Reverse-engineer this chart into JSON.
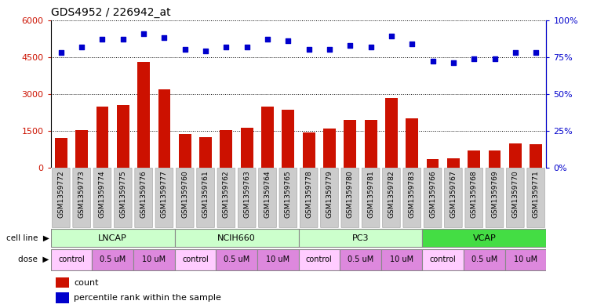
{
  "title": "GDS4952 / 226942_at",
  "samples": [
    "GSM1359772",
    "GSM1359773",
    "GSM1359774",
    "GSM1359775",
    "GSM1359776",
    "GSM1359777",
    "GSM1359760",
    "GSM1359761",
    "GSM1359762",
    "GSM1359763",
    "GSM1359764",
    "GSM1359765",
    "GSM1359778",
    "GSM1359779",
    "GSM1359780",
    "GSM1359781",
    "GSM1359782",
    "GSM1359783",
    "GSM1359766",
    "GSM1359767",
    "GSM1359768",
    "GSM1359769",
    "GSM1359770",
    "GSM1359771"
  ],
  "counts": [
    1200,
    1520,
    2500,
    2550,
    4300,
    3200,
    1380,
    1250,
    1540,
    1620,
    2500,
    2350,
    1450,
    1600,
    1950,
    1950,
    2850,
    2000,
    350,
    380,
    700,
    700,
    1000,
    950
  ],
  "percentiles": [
    78,
    82,
    87,
    87,
    91,
    88,
    80,
    79,
    82,
    82,
    87,
    86,
    80,
    80,
    83,
    82,
    89,
    84,
    72,
    71,
    74,
    74,
    78,
    78
  ],
  "cell_lines": [
    {
      "name": "LNCAP",
      "start": 0,
      "end": 6,
      "color": "#ccffcc"
    },
    {
      "name": "NCIH660",
      "start": 6,
      "end": 12,
      "color": "#ccffcc"
    },
    {
      "name": "PC3",
      "start": 12,
      "end": 18,
      "color": "#ccffcc"
    },
    {
      "name": "VCAP",
      "start": 18,
      "end": 24,
      "color": "#44dd44"
    }
  ],
  "doses": [
    {
      "label": "control",
      "start": 0,
      "end": 2,
      "color": "#ffccff"
    },
    {
      "label": "0.5 uM",
      "start": 2,
      "end": 4,
      "color": "#dd88dd"
    },
    {
      "label": "10 uM",
      "start": 4,
      "end": 6,
      "color": "#dd88dd"
    },
    {
      "label": "control",
      "start": 6,
      "end": 8,
      "color": "#ffccff"
    },
    {
      "label": "0.5 uM",
      "start": 8,
      "end": 10,
      "color": "#dd88dd"
    },
    {
      "label": "10 uM",
      "start": 10,
      "end": 12,
      "color": "#dd88dd"
    },
    {
      "label": "control",
      "start": 12,
      "end": 14,
      "color": "#ffccff"
    },
    {
      "label": "0.5 uM",
      "start": 14,
      "end": 16,
      "color": "#dd88dd"
    },
    {
      "label": "10 uM",
      "start": 16,
      "end": 18,
      "color": "#dd88dd"
    },
    {
      "label": "control",
      "start": 18,
      "end": 20,
      "color": "#ffccff"
    },
    {
      "label": "0.5 uM",
      "start": 20,
      "end": 22,
      "color": "#dd88dd"
    },
    {
      "label": "10 uM",
      "start": 22,
      "end": 24,
      "color": "#dd88dd"
    }
  ],
  "bar_color": "#cc1100",
  "dot_color": "#0000cc",
  "ylim_left": [
    0,
    6000
  ],
  "ylim_right": [
    0,
    100
  ],
  "yticks_left": [
    0,
    1500,
    3000,
    4500,
    6000
  ],
  "yticks_right": [
    0,
    25,
    50,
    75,
    100
  ],
  "bg_color": "#ffffff",
  "label_bg_color": "#cccccc",
  "cell_line_sep_color": "#888888",
  "tick_label_fontsize": 6.5,
  "bar_label_fontsize": 8,
  "title_fontsize": 10
}
